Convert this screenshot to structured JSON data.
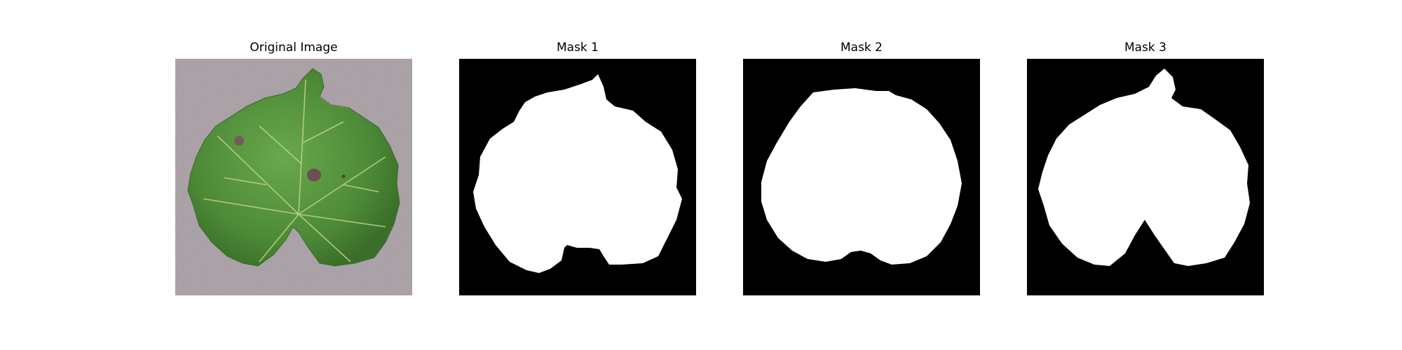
{
  "panels": [
    {
      "title": "Original Image"
    },
    {
      "title": "Mask 1"
    },
    {
      "title": "Mask 2"
    },
    {
      "title": "Mask 3"
    }
  ],
  "colors": {
    "background": "#ffffff",
    "mask_background": "#000000",
    "mask_foreground": "#ffffff",
    "leaf_green": "#4f8f3a",
    "leaf_dark": "#3b6f2a",
    "leaf_vein": "#b7c98a",
    "surface": "#a89ea4"
  },
  "icons": {
    "original": "leaf-photo",
    "mask": "segmentation-mask"
  }
}
